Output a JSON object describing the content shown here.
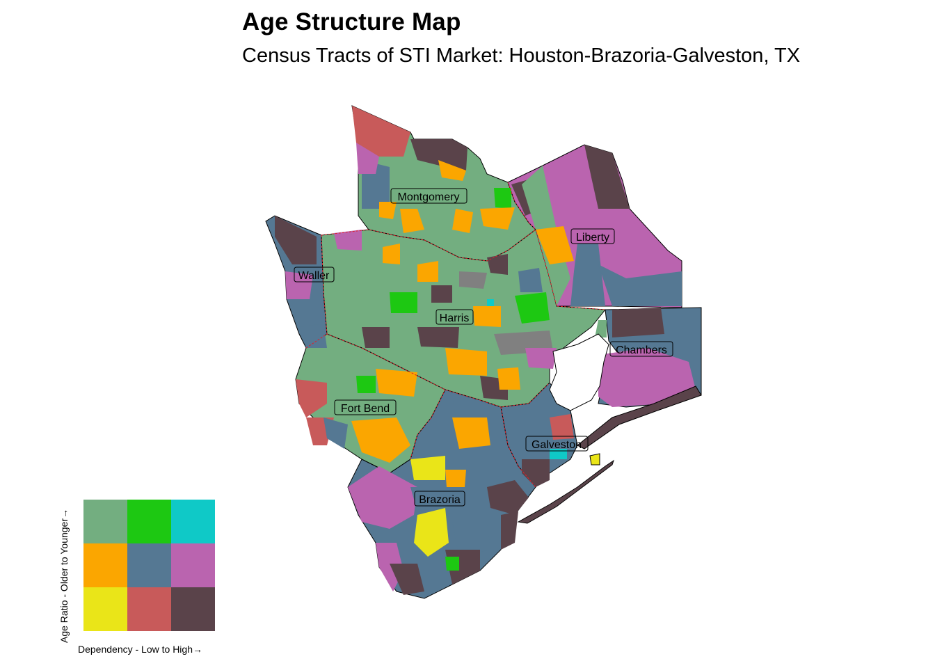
{
  "title": "Age Structure Map",
  "subtitle": "Census Tracts of STI Market: Houston-Brazoria-Galveston, TX",
  "counties": [
    {
      "name": "Montgomery"
    },
    {
      "name": "Liberty"
    },
    {
      "name": "Waller"
    },
    {
      "name": "Harris"
    },
    {
      "name": "Chambers"
    },
    {
      "name": "Fort Bend"
    },
    {
      "name": "Galveston"
    },
    {
      "name": "Brazoria"
    }
  ],
  "legend": {
    "x_label": "Dependency - Low to High→",
    "y_label": "Age Ratio - Older to Younger→",
    "colors": [
      [
        "#73AE80",
        "#1DC812",
        "#0FC9C7"
      ],
      [
        "#FBA600",
        "#557893",
        "#BA64AF"
      ],
      [
        "#EAE518",
        "#C85A5A",
        "#5A434A"
      ]
    ]
  },
  "palette": {
    "background": "#FFFFFF",
    "county_border": "#E0202A",
    "outline": "#000000"
  }
}
